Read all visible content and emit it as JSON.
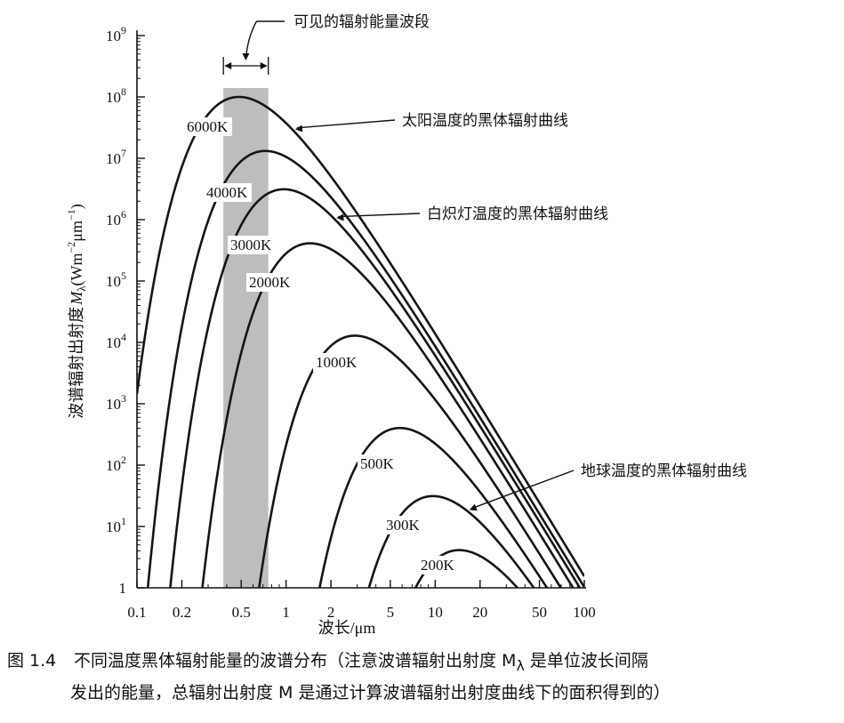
{
  "chart_data": {
    "type": "line",
    "x_scale": "log",
    "y_scale": "log",
    "xlim": [
      0.1,
      100
    ],
    "ylim": [
      1,
      1000000000
    ],
    "x_ticks": [
      {
        "value": 0.1,
        "label": "0.1"
      },
      {
        "value": 0.2,
        "label": "0.2"
      },
      {
        "value": 0.5,
        "label": "0.5"
      },
      {
        "value": 1,
        "label": "1"
      },
      {
        "value": 2,
        "label": "2"
      },
      {
        "value": 5,
        "label": "5"
      },
      {
        "value": 10,
        "label": "10"
      },
      {
        "value": 20,
        "label": "20"
      },
      {
        "value": 50,
        "label": "50"
      },
      {
        "value": 100,
        "label": "100"
      }
    ],
    "y_ticks": [
      {
        "exp": 0,
        "base": "1",
        "sup": ""
      },
      {
        "exp": 1,
        "base": "10",
        "sup": "1"
      },
      {
        "exp": 2,
        "base": "10",
        "sup": "2"
      },
      {
        "exp": 3,
        "base": "10",
        "sup": "3"
      },
      {
        "exp": 4,
        "base": "10",
        "sup": "4"
      },
      {
        "exp": 5,
        "base": "10",
        "sup": "5"
      },
      {
        "exp": 6,
        "base": "10",
        "sup": "6"
      },
      {
        "exp": 7,
        "base": "10",
        "sup": "7"
      },
      {
        "exp": 8,
        "base": "10",
        "sup": "8"
      },
      {
        "exp": 9,
        "base": "10",
        "sup": "9"
      }
    ],
    "xlabel": "波长/μm",
    "ylabel": {
      "text": "波谱辐射出射度",
      "symbol": "M",
      "symbol_sub": "λ",
      "unit_open": "(Wm",
      "unit_sup1": "−2",
      "unit_mid": "μm",
      "unit_sup2": "−1",
      "unit_close": ")"
    },
    "series": [
      {
        "name": "6000K",
        "temperature_K": 6000
      },
      {
        "name": "4000K",
        "temperature_K": 4000
      },
      {
        "name": "3000K",
        "temperature_K": 3000
      },
      {
        "name": "2000K",
        "temperature_K": 2000
      },
      {
        "name": "1000K",
        "temperature_K": 1000
      },
      {
        "name": "500K",
        "temperature_K": 500
      },
      {
        "name": "300K",
        "temperature_K": 300
      },
      {
        "name": "200K",
        "temperature_K": 200
      }
    ],
    "visible_band": {
      "label": "可见的辐射能量波段",
      "x_range": [
        0.38,
        0.76
      ]
    },
    "annotations": [
      {
        "text": "太阳温度的黑体辐射曲线",
        "target": "6000K"
      },
      {
        "text": "白炽灯温度的黑体辐射曲线",
        "target": "3000K"
      },
      {
        "text": "地球温度的黑体辐射曲线",
        "target": "300K"
      }
    ]
  },
  "caption": {
    "number": "图 1.4",
    "line1": "不同温度黑体辐射能量的波谱分布（注意波谱辐射出射度 M",
    "line1_sub": "λ",
    "line1_tail": " 是单位波长间隔",
    "line2": "发出的能量，总辐射出射度 M 是通过计算波谱辐射出射度曲线下的面积得到的）"
  }
}
